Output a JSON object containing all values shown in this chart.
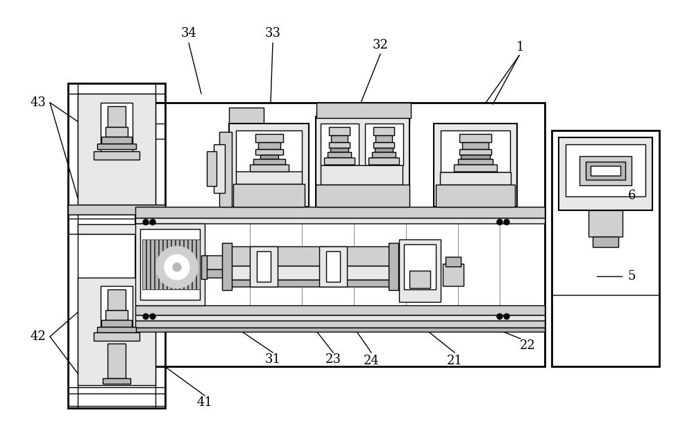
{
  "bg_color": "#ffffff",
  "lw": 1.0,
  "lw2": 1.5,
  "lw3": 2.0,
  "gray1": "#e8e8e8",
  "gray2": "#d0d0d0",
  "gray3": "#b8b8b8",
  "gray4": "#a0a0a0",
  "white": "#ffffff",
  "black": "#000000"
}
